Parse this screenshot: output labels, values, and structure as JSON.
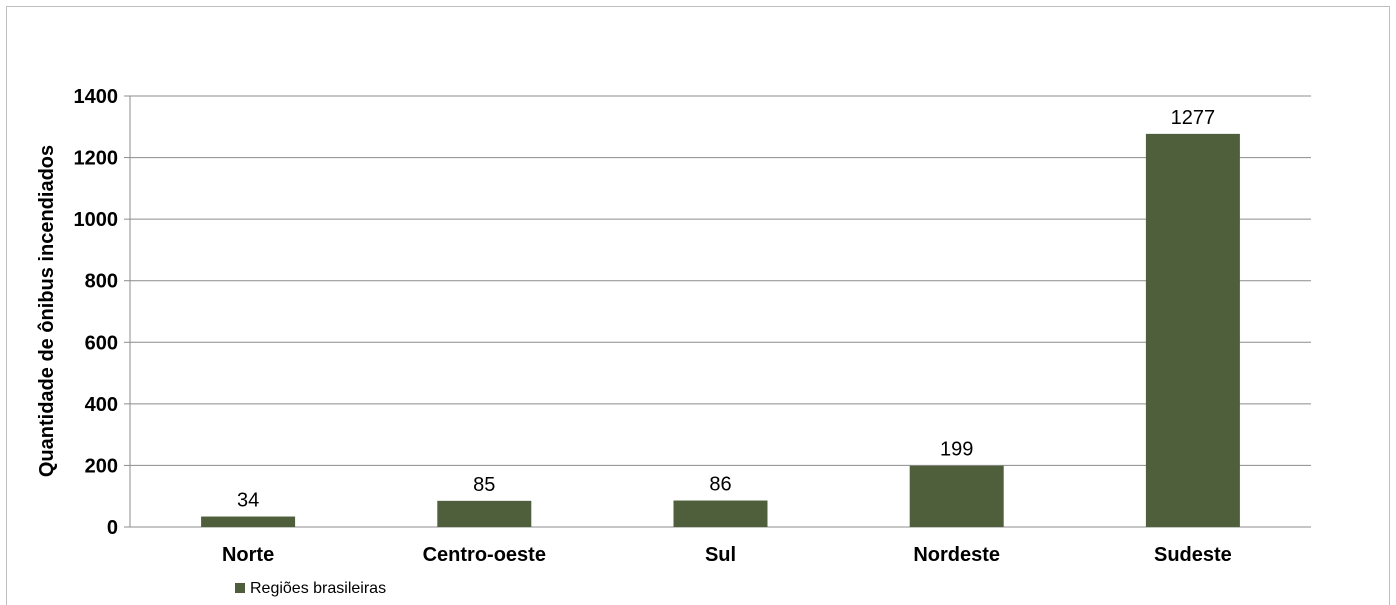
{
  "chart_data": {
    "type": "bar",
    "categories": [
      "Norte",
      "Centro-oeste",
      "Sul",
      "Nordeste",
      "Sudeste"
    ],
    "series": [
      {
        "name": "Regiões brasileiras",
        "values": [
          34,
          85,
          86,
          199,
          1277
        ]
      }
    ],
    "data_labels": [
      "34",
      "85",
      "86",
      "199",
      "1277"
    ],
    "title": "",
    "xlabel": "",
    "ylabel": "Quantidade de ônibus incendiados",
    "ylim": [
      0,
      1400
    ],
    "yticks": [
      0,
      200,
      400,
      600,
      800,
      1000,
      1200,
      1400
    ],
    "grid": true,
    "legend_position": "bottom-left",
    "colors": {
      "bar": "#4f5f3c",
      "grid": "#8c8c8c",
      "axis": "#8c8c8c"
    }
  }
}
